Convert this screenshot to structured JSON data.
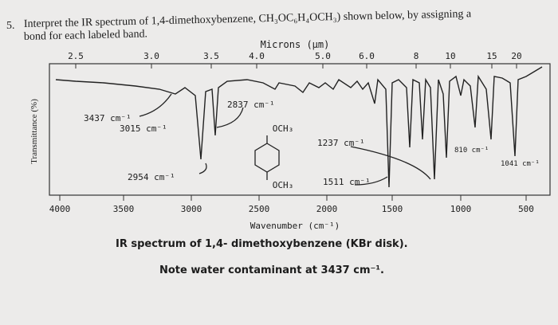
{
  "question": {
    "number": "5.",
    "text": "Interpret the IR spectrum of 1,4-dimethoxybenzene, CH₃OC₆H₄OCH₃) shown below, by assigning a",
    "text_line2": "bond for each labeled band."
  },
  "figure": {
    "top_axis_title": "Microns (μm)",
    "top_ticks": [
      "2.5",
      "3.0",
      "3.5",
      "4.0",
      "5.0",
      "6.0",
      "8",
      "10",
      "15",
      "20"
    ],
    "y_axis_title": "Transmittance (%)",
    "bottom_ticks": [
      "4000",
      "3500",
      "3000",
      "2500",
      "2000",
      "1500",
      "1000",
      "500"
    ],
    "x_axis_title": "Wavenumber (cm⁻¹)",
    "annotations": [
      "3437 cm⁻¹",
      "3015 cm⁻¹",
      "2954 cm⁻¹",
      "2837 cm⁻¹",
      "1237 cm⁻¹",
      "1511 cm⁻¹",
      "810 cm⁻¹",
      "1041 cm⁻¹"
    ],
    "structure_labels": [
      "OCH₃",
      "OCH₃"
    ]
  },
  "caption": [
    "IR spectrum of 1,4- dimethoxybenzene (KBr disk).",
    "Note water contaminant at 3437 cm⁻¹."
  ]
}
